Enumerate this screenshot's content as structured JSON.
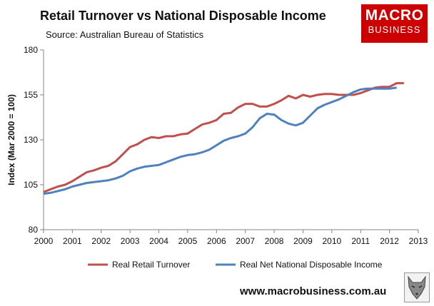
{
  "header": {
    "title": "Retail Turnover vs National Disposable Income",
    "source": "Source: Australian Bureau of Statistics"
  },
  "logo": {
    "line1": "MACRO",
    "line2": "BUSINESS"
  },
  "footer": {
    "url": "www.macrobusiness.com.au"
  },
  "colors": {
    "retail": "#c0504d",
    "income": "#4f81bd",
    "logo_bg": "#cc0000"
  },
  "chart_data": {
    "type": "line",
    "title": "Retail Turnover vs National Disposable Income",
    "ylabel": "Index (Mar 2000 = 100)",
    "xlabel": "",
    "xlim": [
      2000,
      2013
    ],
    "ylim": [
      80,
      180
    ],
    "yticks": [
      80,
      105,
      130,
      155,
      180
    ],
    "xticks": [
      2000,
      2001,
      2002,
      2003,
      2004,
      2005,
      2006,
      2007,
      2008,
      2009,
      2010,
      2011,
      2012,
      2013
    ],
    "grid": false,
    "legend_position": "bottom",
    "series": [
      {
        "name": "Real Retail Turnover",
        "color": "#c0504d",
        "x": [
          2000.0,
          2000.25,
          2000.5,
          2000.75,
          2001.0,
          2001.25,
          2001.5,
          2001.75,
          2002.0,
          2002.25,
          2002.5,
          2002.75,
          2003.0,
          2003.25,
          2003.5,
          2003.75,
          2004.0,
          2004.25,
          2004.5,
          2004.75,
          2005.0,
          2005.25,
          2005.5,
          2005.75,
          2006.0,
          2006.25,
          2006.5,
          2006.75,
          2007.0,
          2007.25,
          2007.5,
          2007.75,
          2008.0,
          2008.25,
          2008.5,
          2008.75,
          2009.0,
          2009.25,
          2009.5,
          2009.75,
          2010.0,
          2010.25,
          2010.5,
          2010.75,
          2011.0,
          2011.25,
          2011.5,
          2011.75,
          2012.0,
          2012.25,
          2012.5
        ],
        "y": [
          101.0,
          102.5,
          104.0,
          105.0,
          107.0,
          109.5,
          112.0,
          113.0,
          114.5,
          115.5,
          118.0,
          122.0,
          126.0,
          127.5,
          130.0,
          131.5,
          131.0,
          132.0,
          132.0,
          133.0,
          133.5,
          136.0,
          138.5,
          139.5,
          141.0,
          144.5,
          145.0,
          148.0,
          150.0,
          150.0,
          148.5,
          148.5,
          150.0,
          152.0,
          154.5,
          153.0,
          155.0,
          154.0,
          155.0,
          155.5,
          155.5,
          155.0,
          155.0,
          155.0,
          156.0,
          157.5,
          159.0,
          159.5,
          159.5,
          161.5,
          161.5
        ]
      },
      {
        "name": "Real Net National Disposable Income",
        "color": "#4f81bd",
        "x": [
          2000.0,
          2000.25,
          2000.5,
          2000.75,
          2001.0,
          2001.25,
          2001.5,
          2001.75,
          2002.0,
          2002.25,
          2002.5,
          2002.75,
          2003.0,
          2003.25,
          2003.5,
          2003.75,
          2004.0,
          2004.25,
          2004.5,
          2004.75,
          2005.0,
          2005.25,
          2005.5,
          2005.75,
          2006.0,
          2006.25,
          2006.5,
          2006.75,
          2007.0,
          2007.25,
          2007.5,
          2007.75,
          2008.0,
          2008.25,
          2008.5,
          2008.75,
          2009.0,
          2009.25,
          2009.5,
          2009.75,
          2010.0,
          2010.25,
          2010.5,
          2010.75,
          2011.0,
          2011.25,
          2011.5,
          2011.75,
          2012.0,
          2012.25
        ],
        "y": [
          100.0,
          100.5,
          101.5,
          102.5,
          104.0,
          105.0,
          106.0,
          106.5,
          107.0,
          107.5,
          108.5,
          110.0,
          112.5,
          114.0,
          115.0,
          115.5,
          116.0,
          117.5,
          119.0,
          120.5,
          121.5,
          122.0,
          123.0,
          124.5,
          127.0,
          129.5,
          131.0,
          132.0,
          133.5,
          137.0,
          142.0,
          144.5,
          144.0,
          141.0,
          139.0,
          138.0,
          139.5,
          143.5,
          147.5,
          149.5,
          151.0,
          152.5,
          154.5,
          156.5,
          158.0,
          158.5,
          158.5,
          158.5,
          158.5,
          159.0
        ]
      }
    ]
  }
}
